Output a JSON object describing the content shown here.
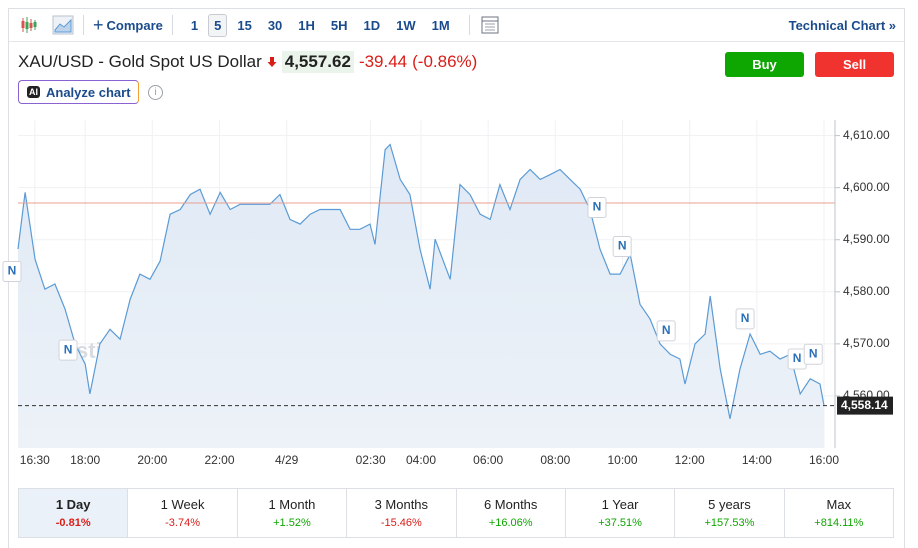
{
  "toolbar": {
    "compare": "Compare",
    "intervals": [
      "1",
      "5",
      "15",
      "30",
      "1H",
      "5H",
      "1D",
      "1W",
      "1M"
    ],
    "active_interval": "5",
    "technical_chart": "Technical Chart »"
  },
  "header": {
    "title": "XAU/USD - Gold Spot US Dollar",
    "price": "4,557.62",
    "change": "-39.44",
    "change_pct": "(-0.86%)",
    "buy": "Buy",
    "sell": "Sell",
    "analyze": "Analyze chart",
    "ai_badge": "AI"
  },
  "chart_data": {
    "type": "area",
    "watermark": "Investing.com",
    "color": "#5b9bd5",
    "grid": true,
    "xlim": [
      16.0,
      40.0
    ],
    "xticks": [
      {
        "value": 16.5,
        "label": "16:30"
      },
      {
        "value": 18,
        "label": "18:00"
      },
      {
        "value": 20,
        "label": "20:00"
      },
      {
        "value": 22,
        "label": "22:00"
      },
      {
        "value": 24,
        "label": "4/29"
      },
      {
        "value": 26.5,
        "label": "02:30"
      },
      {
        "value": 28,
        "label": "04:00"
      },
      {
        "value": 30,
        "label": "06:00"
      },
      {
        "value": 32,
        "label": "08:00"
      },
      {
        "value": 34,
        "label": "10:00"
      },
      {
        "value": 36,
        "label": "12:00"
      },
      {
        "value": 38,
        "label": "14:00"
      },
      {
        "value": 40,
        "label": "16:00"
      }
    ],
    "ylim": [
      4550,
      4613
    ],
    "yticks": [
      {
        "value": 4560,
        "label": "4,560.00"
      },
      {
        "value": 4570,
        "label": "4,570.00"
      },
      {
        "value": 4580,
        "label": "4,580.00"
      },
      {
        "value": 4590,
        "label": "4,590.00"
      },
      {
        "value": 4600,
        "label": "4,600.00"
      },
      {
        "value": 4610,
        "label": "4,610.00"
      }
    ],
    "reference_line": {
      "value": 4597.06,
      "color": "#e8a093"
    },
    "last_price": {
      "value": 4558.14,
      "label": "4,558.14"
    },
    "x": [
      16.0,
      16.21,
      16.51,
      16.8,
      17.1,
      17.4,
      17.7,
      18.0,
      18.14,
      18.44,
      18.74,
      19.04,
      19.34,
      19.63,
      19.93,
      20.23,
      20.53,
      20.83,
      21.13,
      21.42,
      21.72,
      22.02,
      22.32,
      22.61,
      22.91,
      23.21,
      23.5,
      23.8,
      24.1,
      24.4,
      24.7,
      24.99,
      25.29,
      25.59,
      25.89,
      26.18,
      26.48,
      26.63,
      26.93,
      27.08,
      27.38,
      27.67,
      27.97,
      28.27,
      28.42,
      28.87,
      29.16,
      29.46,
      29.76,
      30.06,
      30.35,
      30.65,
      30.95,
      31.25,
      31.55,
      31.84,
      32.14,
      32.44,
      32.74,
      33.03,
      33.33,
      33.63,
      33.93,
      34.23,
      34.52,
      34.82,
      35.12,
      35.42,
      35.71,
      35.86,
      36.16,
      36.46,
      36.61,
      36.91,
      37.2,
      37.5,
      37.8,
      38.1,
      38.39,
      38.69,
      38.99,
      39.29,
      39.59,
      39.88,
      40.0
    ],
    "values": [
      4588.2,
      4599.1,
      4586.2,
      4580.5,
      4581.5,
      4576.7,
      4570.0,
      4566.1,
      4560.4,
      4570.0,
      4572.8,
      4570.9,
      4578.6,
      4583.4,
      4582.4,
      4585.9,
      4594.9,
      4595.8,
      4598.7,
      4599.7,
      4594.9,
      4599.1,
      4595.8,
      4596.8,
      4596.8,
      4596.8,
      4596.8,
      4598.7,
      4593.9,
      4593.0,
      4594.9,
      4595.8,
      4595.8,
      4595.8,
      4592.0,
      4592.0,
      4593.0,
      4589.1,
      4607.3,
      4608.3,
      4601.6,
      4598.7,
      4588.2,
      4580.5,
      4590.1,
      4582.4,
      4600.6,
      4598.7,
      4594.9,
      4593.9,
      4600.6,
      4595.8,
      4601.6,
      4603.5,
      4601.6,
      4602.5,
      4603.5,
      4601.6,
      4599.7,
      4595.8,
      4588.2,
      4583.4,
      4583.4,
      4587.2,
      4577.6,
      4574.8,
      4570.0,
      4568.0,
      4567.1,
      4562.3,
      4570.0,
      4571.9,
      4579.2,
      4565.2,
      4555.6,
      4565.2,
      4571.9,
      4568.0,
      4568.6,
      4567.1,
      4568.0,
      4560.4,
      4563.3,
      4562.3,
      4558.14
    ],
    "news_markers": [
      {
        "x": 15.82,
        "y": 4583.9,
        "label": "N"
      },
      {
        "x": 17.49,
        "y": 4568.8,
        "label": "N"
      },
      {
        "x": 33.24,
        "y": 4596.2,
        "label": "N"
      },
      {
        "x": 33.99,
        "y": 4588.7,
        "label": "N"
      },
      {
        "x": 35.3,
        "y": 4572.5,
        "label": "N"
      },
      {
        "x": 37.65,
        "y": 4574.8,
        "label": "N"
      },
      {
        "x": 39.2,
        "y": 4567.1,
        "label": "N"
      },
      {
        "x": 39.68,
        "y": 4568.0,
        "label": "N"
      }
    ]
  },
  "ranges": [
    {
      "label": "1 Day",
      "change": "-0.81%"
    },
    {
      "label": "1 Week",
      "change": "-3.74%"
    },
    {
      "label": "1 Month",
      "change": "+1.52%"
    },
    {
      "label": "3 Months",
      "change": "-15.46%"
    },
    {
      "label": "6 Months",
      "change": "+16.06%"
    },
    {
      "label": "1 Year",
      "change": "+37.51%"
    },
    {
      "label": "5 years",
      "change": "+157.53%"
    },
    {
      "label": "Max",
      "change": "+814.11%"
    }
  ],
  "active_range": "1 Day"
}
